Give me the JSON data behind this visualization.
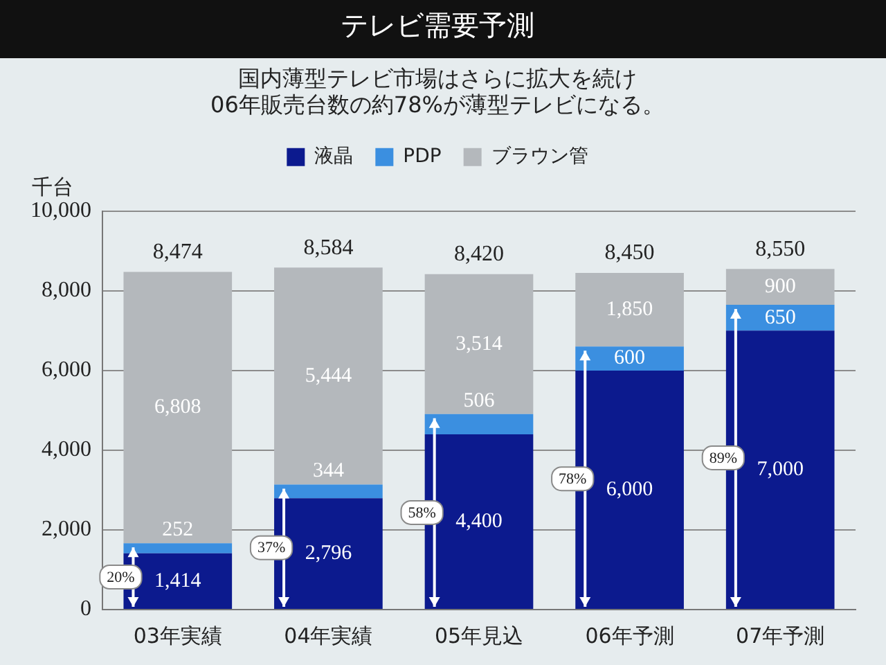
{
  "chart_data": {
    "type": "bar",
    "title": "テレビ需要予測",
    "subtitle": "国内薄型テレビ市場はさらに拡大を続け\n06年販売台数の約78%が薄型テレビになる。",
    "ylabel": "千台",
    "categories": [
      "03年実績",
      "04年実績",
      "05年見込",
      "06年予測",
      "07年予測"
    ],
    "series": [
      {
        "name": "液晶",
        "color": "#0c1a8e",
        "values": [
          1414,
          2796,
          4400,
          6000,
          7000
        ],
        "value_labels": [
          "1,414",
          "2,796",
          "4,400",
          "6,000",
          "7,000"
        ]
      },
      {
        "name": "PDP",
        "color": "#3b8fe0",
        "values": [
          252,
          344,
          506,
          600,
          650
        ],
        "value_labels": [
          "252",
          "344",
          "506",
          "600",
          "650"
        ]
      },
      {
        "name": "ブラウン管",
        "color": "#b4b8bc",
        "values": [
          6808,
          5444,
          3514,
          1850,
          900
        ],
        "value_labels": [
          "6,808",
          "5,444",
          "3,514",
          "1,850",
          "900"
        ]
      }
    ],
    "stacked": true,
    "ylim": [
      0,
      10000
    ],
    "yticks": [
      0,
      {
        "value": 2000,
        "label": "2,000"
      },
      {
        "value": 4000,
        "label": "4,000"
      },
      {
        "value": 6000,
        "label": "6,000"
      },
      {
        "value": 8000,
        "label": "8,000"
      },
      {
        "value": 10000,
        "label": "10,000"
      }
    ],
    "grid": "y",
    "legend": "top",
    "totals": [
      "8,474",
      "8,584",
      "8,420",
      "8,450",
      "8,550"
    ],
    "annotations": [
      "20%",
      "37%",
      "58%",
      "78%",
      "89%"
    ]
  }
}
